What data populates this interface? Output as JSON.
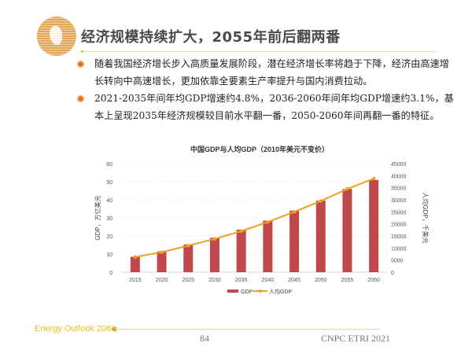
{
  "header": {
    "title": "经济规模持续扩大，2055年前后翻两番",
    "icon": "globe-icon"
  },
  "bullets": [
    "随着我国经济增长步入高质量发展阶段，潜在经济增长率将趋于下降，经济由高速增长转向中高速增长，更加依靠全要素生产率提升与国内消费拉动。",
    "2021-2035年间年均GDP增速约4.8%，2036-2060年间年均GDP增速约3.1%，基本上呈现2035年经济规模较目前水平翻一番，2050-2060年间再翻一番的特征。"
  ],
  "chart_data": {
    "type": "bar",
    "title": "中国GDP与人均GDP（2010年美元不变价）",
    "categories": [
      "2015",
      "2020",
      "2025",
      "2030",
      "2035",
      "2040",
      "2045",
      "2050",
      "2055",
      "2060"
    ],
    "series": [
      {
        "name": "GDP",
        "type": "bar",
        "axis": "left",
        "color": "#c0474a",
        "values": [
          8.5,
          11.5,
          15.3,
          19,
          23.5,
          28.5,
          34,
          39.5,
          46,
          51
        ]
      },
      {
        "name": "人均GDP",
        "type": "line",
        "axis": "right",
        "color": "#f0a020",
        "values": [
          6300,
          8300,
          11000,
          13800,
          17000,
          20800,
          25000,
          29500,
          34500,
          38800
        ]
      }
    ],
    "ylabel": "GDP，万亿美元",
    "y2label": "人均GDP，千美元",
    "ylim": [
      0,
      60
    ],
    "y2lim": [
      0,
      45000
    ],
    "yticks": [
      "0",
      "10",
      "20",
      "30",
      "40",
      "50",
      "60"
    ],
    "y2ticks": [
      "0",
      "5000",
      "10000",
      "15000",
      "20000",
      "25000",
      "30000",
      "35000",
      "40000",
      "45000"
    ],
    "grid": true,
    "legend": "bottom"
  },
  "footer": {
    "brand": "Energy Outlook 2060",
    "page": "84",
    "org": "CNPC ETRI 2021"
  }
}
